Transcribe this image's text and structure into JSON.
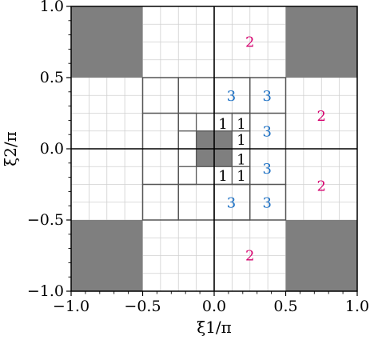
{
  "chart_data": {
    "type": "heatmap",
    "xlabel": "ξ1/π",
    "ylabel": "ξ2/π",
    "xlim": [
      -1.0,
      1.0
    ],
    "ylim": [
      -1.0,
      1.0
    ],
    "x_ticks": [
      {
        "value": -1.0,
        "label": "−1.0"
      },
      {
        "value": -0.5,
        "label": "−0.5"
      },
      {
        "value": 0.0,
        "label": "0.0"
      },
      {
        "value": 0.5,
        "label": "0.5"
      },
      {
        "value": 1.0,
        "label": "1.0"
      }
    ],
    "y_ticks": [
      {
        "value": -1.0,
        "label": "−1.0"
      },
      {
        "value": -0.5,
        "label": "−0.5"
      },
      {
        "value": 0.0,
        "label": "0.0"
      },
      {
        "value": 0.5,
        "label": "0.5"
      },
      {
        "value": 1.0,
        "label": "1.0"
      }
    ],
    "grid": true,
    "grid_step": 0.125,
    "colors": {
      "shaded": "#7f7f7f",
      "level2": "#d6006e",
      "level3": "#1a6fc4",
      "level1": "#000000",
      "grid": "#d0d0d0",
      "box_edge": "#555555"
    },
    "shaded_regions": [
      {
        "x": [
          -1.0,
          -0.5
        ],
        "y": [
          0.5,
          1.0
        ]
      },
      {
        "x": [
          0.5,
          1.0
        ],
        "y": [
          0.5,
          1.0
        ]
      },
      {
        "x": [
          -1.0,
          -0.5
        ],
        "y": [
          -1.0,
          -0.5
        ]
      },
      {
        "x": [
          0.5,
          1.0
        ],
        "y": [
          -1.0,
          -0.5
        ]
      },
      {
        "x": [
          -0.125,
          0.125
        ],
        "y": [
          -0.125,
          0.125
        ]
      }
    ],
    "boxes": [
      {
        "x": [
          -0.5,
          0.5
        ],
        "y": [
          -0.5,
          0.5
        ]
      },
      {
        "x": [
          -0.25,
          0.25
        ],
        "y": [
          -0.25,
          0.25
        ]
      },
      {
        "x": [
          -0.125,
          0.125
        ],
        "y": [
          -0.125,
          0.125
        ]
      },
      {
        "x": [
          -0.25,
          -0.125
        ],
        "y": [
          0.125,
          0.25
        ]
      },
      {
        "x": [
          -0.25,
          -0.125
        ],
        "y": [
          -0.25,
          -0.125
        ]
      },
      {
        "x": [
          0.125,
          0.25
        ],
        "y": [
          0.125,
          0.25
        ]
      },
      {
        "x": [
          0.125,
          0.25
        ],
        "y": [
          -0.25,
          -0.125
        ]
      },
      {
        "x": [
          -0.5,
          -0.25
        ],
        "y": [
          0.25,
          0.5
        ]
      },
      {
        "x": [
          -0.5,
          -0.25
        ],
        "y": [
          -0.5,
          -0.25
        ]
      },
      {
        "x": [
          0.25,
          0.5
        ],
        "y": [
          0.25,
          0.5
        ]
      },
      {
        "x": [
          0.25,
          0.5
        ],
        "y": [
          -0.5,
          -0.25
        ]
      },
      {
        "x": [
          -0.5,
          -0.25
        ],
        "y": [
          -0.25,
          0.25
        ]
      },
      {
        "x": [
          0.25,
          0.5
        ],
        "y": [
          -0.25,
          0.25
        ]
      },
      {
        "x": [
          -0.25,
          0.25
        ],
        "y": [
          0.25,
          0.5
        ]
      },
      {
        "x": [
          -0.25,
          0.25
        ],
        "y": [
          -0.5,
          -0.25
        ]
      },
      {
        "x": [
          0.0,
          0.25
        ],
        "y": [
          -0.5,
          -0.25
        ]
      },
      {
        "x": [
          0.0,
          0.25
        ],
        "y": [
          0.25,
          0.5
        ]
      }
    ],
    "annotations": [
      {
        "text": "2",
        "x": 0.25,
        "y": 0.75,
        "level": "level2"
      },
      {
        "text": "2",
        "x": 0.75,
        "y": 0.23,
        "level": "level2"
      },
      {
        "text": "2",
        "x": 0.75,
        "y": -0.26,
        "level": "level2"
      },
      {
        "text": "2",
        "x": 0.25,
        "y": -0.75,
        "level": "level2"
      },
      {
        "text": "3",
        "x": 0.12,
        "y": 0.37,
        "level": "level3"
      },
      {
        "text": "3",
        "x": 0.37,
        "y": 0.37,
        "level": "level3"
      },
      {
        "text": "3",
        "x": 0.37,
        "y": 0.12,
        "level": "level3"
      },
      {
        "text": "3",
        "x": 0.37,
        "y": -0.14,
        "level": "level3"
      },
      {
        "text": "3",
        "x": 0.12,
        "y": -0.38,
        "level": "level3"
      },
      {
        "text": "3",
        "x": 0.37,
        "y": -0.38,
        "level": "level3"
      },
      {
        "text": "1",
        "x": 0.062,
        "y": 0.175,
        "level": "level1"
      },
      {
        "text": "1",
        "x": 0.19,
        "y": 0.175,
        "level": "level1"
      },
      {
        "text": "1",
        "x": 0.19,
        "y": 0.062,
        "level": "level1"
      },
      {
        "text": "1",
        "x": 0.19,
        "y": -0.075,
        "level": "level1"
      },
      {
        "text": "1",
        "x": 0.062,
        "y": -0.19,
        "level": "level1"
      },
      {
        "text": "1",
        "x": 0.19,
        "y": -0.19,
        "level": "level1"
      }
    ]
  }
}
